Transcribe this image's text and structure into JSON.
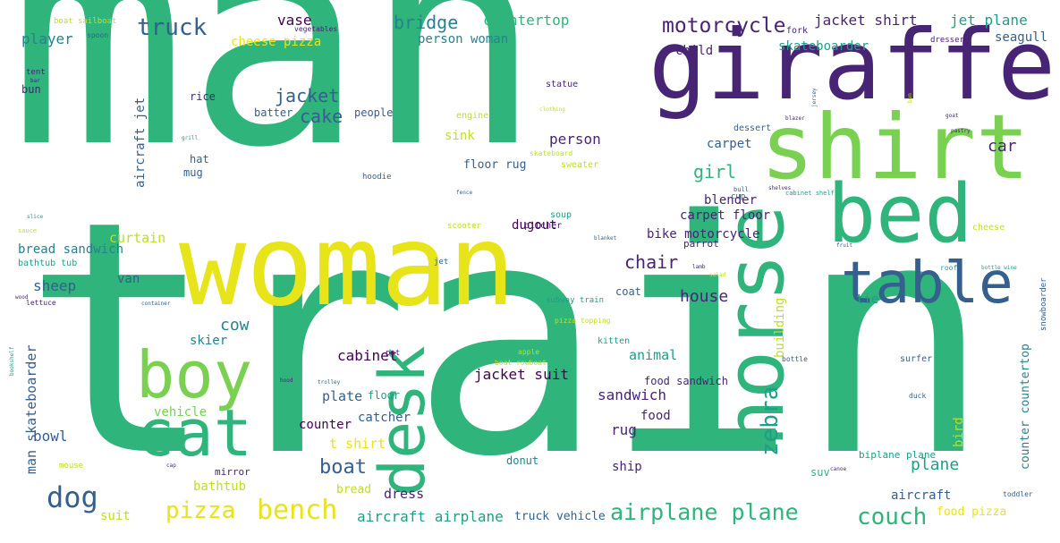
{
  "palette": {
    "yellow": "#e7e419",
    "lime": "#7ad151",
    "teal_green": "#2fb47c",
    "teal": "#1f9e89",
    "blue_teal": "#26828e",
    "blue": "#355f8d",
    "purple": "#482475",
    "dark_purple": "#440154",
    "light_green": "#bddf26"
  },
  "words": [
    {
      "text": "man",
      "color": "teal_green"
    },
    {
      "text": "train",
      "color": "teal_green"
    },
    {
      "text": "woman",
      "color": "yellow"
    },
    {
      "text": "giraffe",
      "color": "purple"
    },
    {
      "text": "shirt",
      "color": "lime"
    },
    {
      "text": "bed",
      "color": "teal_green"
    },
    {
      "text": "horse",
      "color": "teal_green"
    },
    {
      "text": "table",
      "color": "blue"
    },
    {
      "text": "boy",
      "color": "lime"
    },
    {
      "text": "cat",
      "color": "teal_green"
    },
    {
      "text": "desk",
      "color": "teal_green"
    },
    {
      "text": "dog",
      "color": "blue"
    },
    {
      "text": "bench",
      "color": "yellow"
    },
    {
      "text": "pizza",
      "color": "yellow"
    },
    {
      "text": "airplane plane",
      "color": "teal_green"
    },
    {
      "text": "couch",
      "color": "teal_green"
    },
    {
      "text": "motorcycle",
      "color": "purple"
    },
    {
      "text": "truck",
      "color": "blue"
    },
    {
      "text": "bridge",
      "color": "blue_teal"
    },
    {
      "text": "vase",
      "color": "dark_purple"
    },
    {
      "text": "countertop",
      "color": "teal_green"
    },
    {
      "text": "jacket shirt",
      "color": "purple"
    },
    {
      "text": "jet plane",
      "color": "teal"
    },
    {
      "text": "seagull",
      "color": "blue"
    },
    {
      "text": "player",
      "color": "blue_teal"
    },
    {
      "text": "cheese pizza",
      "color": "yellow"
    },
    {
      "text": "person woman",
      "color": "blue_teal"
    },
    {
      "text": "child",
      "color": "purple"
    },
    {
      "text": "skateboarder",
      "color": "teal"
    },
    {
      "text": "jacket",
      "color": "blue"
    },
    {
      "text": "cake",
      "color": "blue"
    },
    {
      "text": "girl",
      "color": "teal_green"
    },
    {
      "text": "person",
      "color": "purple"
    },
    {
      "text": "car",
      "color": "purple"
    },
    {
      "text": "carpet",
      "color": "blue"
    },
    {
      "text": "blender",
      "color": "purple"
    },
    {
      "text": "carpet floor",
      "color": "purple"
    },
    {
      "text": "bike motorcycle",
      "color": "purple"
    },
    {
      "text": "curtain",
      "color": "light_green"
    },
    {
      "text": "bread sandwich",
      "color": "blue_teal"
    },
    {
      "text": "chair",
      "color": "purple"
    },
    {
      "text": "sheep",
      "color": "blue"
    },
    {
      "text": "van",
      "color": "blue"
    },
    {
      "text": "house",
      "color": "purple"
    },
    {
      "text": "cow",
      "color": "blue_teal"
    },
    {
      "text": "building",
      "color": "light_green"
    },
    {
      "text": "tie",
      "color": "teal"
    },
    {
      "text": "cabinet",
      "color": "dark_purple"
    },
    {
      "text": "boat",
      "color": "blue"
    },
    {
      "text": "sandwich",
      "color": "purple"
    },
    {
      "text": "zebra",
      "color": "teal"
    },
    {
      "text": "plane",
      "color": "teal"
    },
    {
      "text": "jacket suit",
      "color": "dark_purple"
    },
    {
      "text": "animal",
      "color": "teal"
    },
    {
      "text": "food sandwich",
      "color": "purple"
    },
    {
      "text": "food",
      "color": "purple"
    },
    {
      "text": "rug",
      "color": "purple"
    },
    {
      "text": "knife",
      "color": "teal_green"
    },
    {
      "text": "t shirt",
      "color": "yellow"
    },
    {
      "text": "counter",
      "color": "dark_purple"
    },
    {
      "text": "plate",
      "color": "blue"
    },
    {
      "text": "floor",
      "color": "teal"
    },
    {
      "text": "vehicle",
      "color": "lime"
    },
    {
      "text": "bowl",
      "color": "blue"
    },
    {
      "text": "skier",
      "color": "blue_teal"
    },
    {
      "text": "catcher",
      "color": "blue"
    },
    {
      "text": "ship",
      "color": "purple"
    },
    {
      "text": "suv",
      "color": "teal_green"
    },
    {
      "text": "dress",
      "color": "purple"
    },
    {
      "text": "bathtub",
      "color": "light_green"
    },
    {
      "text": "bread",
      "color": "light_green"
    },
    {
      "text": "aircraft airplane",
      "color": "teal"
    },
    {
      "text": "truck vehicle",
      "color": "blue"
    },
    {
      "text": "aircraft",
      "color": "blue"
    },
    {
      "text": "food pizza",
      "color": "yellow"
    },
    {
      "text": "suit",
      "color": "light_green"
    },
    {
      "text": "mirror",
      "color": "purple"
    },
    {
      "text": "donut",
      "color": "blue_teal"
    },
    {
      "text": "man skateboarder",
      "color": "blue"
    },
    {
      "text": "counter countertop",
      "color": "blue_teal"
    },
    {
      "text": "bird",
      "color": "light_green"
    },
    {
      "text": "biplane plane",
      "color": "teal"
    },
    {
      "text": "coat",
      "color": "blue"
    },
    {
      "text": "dugout",
      "color": "dark_purple"
    },
    {
      "text": "floor rug",
      "color": "blue"
    },
    {
      "text": "sink",
      "color": "light_green"
    },
    {
      "text": "aircraft jet",
      "color": "blue"
    },
    {
      "text": "hat",
      "color": "blue"
    },
    {
      "text": "mug",
      "color": "blue"
    },
    {
      "text": "batter",
      "color": "blue"
    },
    {
      "text": "people",
      "color": "blue"
    },
    {
      "text": "rice",
      "color": "purple"
    },
    {
      "text": "bun",
      "color": "purple"
    },
    {
      "text": "tent",
      "color": "purple"
    },
    {
      "text": "spoon",
      "color": "blue"
    },
    {
      "text": "vegetables",
      "color": "purple"
    },
    {
      "text": "boat sailboat",
      "color": "light_green"
    },
    {
      "text": "engine",
      "color": "light_green"
    },
    {
      "text": "sweater",
      "color": "light_green"
    },
    {
      "text": "statue",
      "color": "purple"
    },
    {
      "text": "fork",
      "color": "purple"
    },
    {
      "text": "dresser",
      "color": "purple"
    },
    {
      "text": "dessert",
      "color": "blue"
    },
    {
      "text": "cup",
      "color": "blue"
    },
    {
      "text": "soup",
      "color": "teal"
    },
    {
      "text": "pitcher",
      "color": "purple"
    },
    {
      "text": "scooter",
      "color": "light_green"
    },
    {
      "text": "parrot",
      "color": "purple"
    },
    {
      "text": "hoodie",
      "color": "blue"
    },
    {
      "text": "skateboard",
      "color": "light_green"
    },
    {
      "text": "jet",
      "color": "blue"
    },
    {
      "text": "subway train",
      "color": "teal"
    },
    {
      "text": "pizza topping",
      "color": "light_green"
    },
    {
      "text": "kitten",
      "color": "teal"
    },
    {
      "text": "pot",
      "color": "purple"
    },
    {
      "text": "apple",
      "color": "light_green"
    },
    {
      "text": "boat rowboat",
      "color": "light_green"
    },
    {
      "text": "bottle",
      "color": "blue"
    },
    {
      "text": "surfer",
      "color": "blue"
    },
    {
      "text": "duck",
      "color": "blue"
    },
    {
      "text": "toddler",
      "color": "blue"
    },
    {
      "text": "snowboarder",
      "color": "blue"
    },
    {
      "text": "cheese",
      "color": "light_green"
    },
    {
      "text": "roof",
      "color": "teal"
    },
    {
      "text": "mouse",
      "color": "light_green"
    },
    {
      "text": "bathtub tub",
      "color": "teal"
    },
    {
      "text": "lettuce",
      "color": "purple"
    },
    {
      "text": "wood",
      "color": "purple"
    },
    {
      "text": "cabinet shelf",
      "color": "teal"
    },
    {
      "text": "bull",
      "color": "blue"
    },
    {
      "text": "shelves",
      "color": "purple"
    },
    {
      "text": "fruit",
      "color": "blue"
    },
    {
      "text": "bottle wine",
      "color": "teal"
    },
    {
      "text": "salad",
      "color": "light_green"
    },
    {
      "text": "blanket",
      "color": "blue"
    },
    {
      "text": "sauce",
      "color": "light_green"
    },
    {
      "text": "slice",
      "color": "teal"
    },
    {
      "text": "grill",
      "color": "teal"
    },
    {
      "text": "clothing",
      "color": "light_green"
    },
    {
      "text": "bookshelf",
      "color": "teal"
    },
    {
      "text": "container",
      "color": "blue"
    },
    {
      "text": "bar",
      "color": "purple"
    },
    {
      "text": "jersey",
      "color": "blue"
    },
    {
      "text": "goat",
      "color": "purple"
    },
    {
      "text": "pastry",
      "color": "purple"
    },
    {
      "text": "blazer",
      "color": "purple"
    },
    {
      "text": "bun",
      "color": "light_green"
    },
    {
      "text": "cap",
      "color": "purple"
    },
    {
      "text": "trolley",
      "color": "blue"
    },
    {
      "text": "lamb",
      "color": "purple"
    },
    {
      "text": "fence",
      "color": "blue"
    },
    {
      "text": "hood",
      "color": "purple"
    },
    {
      "text": "canoe",
      "color": "purple"
    }
  ]
}
